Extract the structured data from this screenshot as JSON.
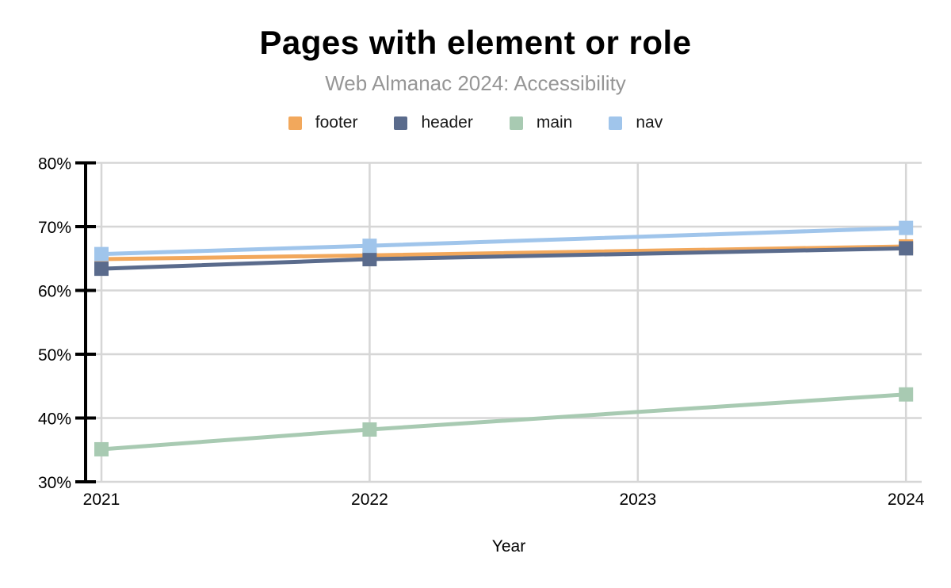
{
  "title": "Pages with element or role",
  "subtitle": "Web Almanac 2024: Accessibility",
  "colors": {
    "background": "#FFFFFF",
    "gridline": "#D6D6D6",
    "axis": "#000000",
    "title_text": "#000000",
    "subtitle_text": "#969696",
    "tick_label": "#000000"
  },
  "chart_data": {
    "type": "line",
    "title": "Pages with element or role",
    "subtitle": "Web Almanac 2024: Accessibility",
    "xlabel": "Year",
    "ylabel": "",
    "x": [
      2021,
      2022,
      2024
    ],
    "x_axis_ticks": [
      2021,
      2022,
      2023,
      2024
    ],
    "ylim": [
      30,
      80
    ],
    "y_ticks": [
      80,
      70,
      60,
      50,
      40,
      30
    ],
    "y_tick_suffix": "%",
    "grid": true,
    "legend_position": "top",
    "marker_shape": "square",
    "note": "markers only at years 2021, 2022, 2024; no data point at 2023",
    "series": [
      {
        "name": "footer",
        "color": "#F2A85C",
        "values": [
          64.9,
          65.5,
          66.9
        ]
      },
      {
        "name": "header",
        "color": "#5A6B8C",
        "values": [
          63.4,
          64.9,
          66.6
        ]
      },
      {
        "name": "main",
        "color": "#A8CAB2",
        "values": [
          35.1,
          38.2,
          43.7
        ]
      },
      {
        "name": "nav",
        "color": "#A0C5EB",
        "values": [
          65.7,
          67.0,
          69.8
        ]
      }
    ]
  }
}
